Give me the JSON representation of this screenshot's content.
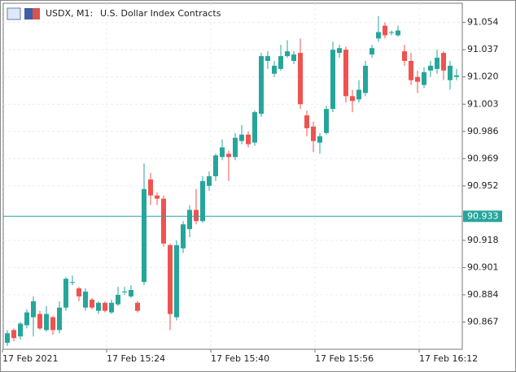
{
  "chart_data": {
    "type": "candlestick",
    "symbol": "USDX, M1:",
    "description": "U.S. Dollar Index Contracts",
    "categories": [
      "17 Feb 2021",
      null,
      null,
      null,
      null,
      null,
      null,
      null,
      null,
      null,
      null,
      null,
      null,
      null,
      null,
      null,
      "17 Feb 15:24",
      null,
      null,
      null,
      null,
      null,
      null,
      null,
      null,
      null,
      null,
      null,
      null,
      null,
      null,
      null,
      "17 Feb 15:40",
      null,
      null,
      null,
      null,
      null,
      null,
      null,
      null,
      null,
      null,
      null,
      null,
      null,
      null,
      null,
      "17 Feb 15:56",
      null,
      null,
      null,
      null,
      null,
      null,
      null,
      null,
      null,
      null,
      null,
      null,
      null,
      null,
      null,
      "17 Feb 16:12",
      null,
      null,
      null,
      null,
      null
    ],
    "open": [
      90.854,
      90.862,
      90.858,
      90.865,
      90.87,
      90.872,
      90.862,
      90.87,
      90.862,
      90.876,
      90.892,
      90.888,
      90.876,
      90.881,
      90.874,
      90.879,
      90.873,
      90.878,
      90.886,
      90.883,
      90.879,
      90.892,
      90.956,
      90.946,
      90.944,
      90.915,
      90.87,
      90.913,
      90.925,
      90.937,
      90.93,
      90.952,
      90.958,
      90.97,
      90.972,
      90.97,
      90.98,
      90.984,
      90.979,
      90.997,
      91.03,
      91.022,
      91.025,
      91.033,
      91.03,
      91.035,
      90.996,
      90.989,
      90.979,
      90.985,
      91.0,
      91.035,
      91.037,
      91.008,
      91.006,
      91.01,
      91.034,
      91.044,
      91.052,
      91.048,
      91.046,
      91.036,
      91.03,
      91.02,
      91.015,
      91.024,
      91.025,
      91.035,
      91.018,
      91.02
    ],
    "high": [
      90.862,
      90.863,
      90.867,
      90.875,
      90.883,
      90.874,
      90.877,
      90.871,
      90.88,
      90.895,
      90.896,
      90.889,
      90.888,
      90.882,
      90.88,
      90.88,
      90.881,
      90.889,
      90.889,
      90.89,
      90.88,
      90.966,
      90.96,
      90.948,
      90.946,
      90.916,
      90.918,
      90.93,
      90.94,
      90.95,
      90.958,
      90.961,
      90.972,
      90.981,
      90.974,
      90.985,
      90.99,
      90.986,
      90.999,
      91.035,
      91.036,
      91.03,
      91.04,
      91.043,
      91.036,
      91.044,
      90.999,
      90.992,
      90.985,
      91.002,
      91.042,
      91.04,
      91.039,
      91.012,
      91.018,
      91.03,
      91.04,
      91.058,
      91.054,
      91.049,
      91.052,
      91.04,
      91.035,
      91.024,
      91.026,
      91.03,
      91.037,
      91.036,
      91.03,
      91.025
    ],
    "low": [
      90.852,
      90.855,
      90.856,
      90.863,
      90.858,
      90.862,
      90.861,
      90.859,
      90.86,
      90.874,
      90.89,
      90.88,
      90.874,
      90.875,
      90.872,
      90.873,
      90.872,
      90.877,
      90.884,
      90.882,
      90.873,
      90.89,
      90.94,
      90.94,
      90.914,
      90.862,
      90.868,
      90.91,
      90.92,
      90.928,
      90.929,
      90.949,
      90.955,
      90.968,
      90.955,
      90.968,
      90.978,
      90.976,
      90.977,
      90.995,
      91.025,
      91.02,
      91.024,
      91.032,
      91.028,
      91.0,
      90.983,
      90.973,
      90.972,
      90.984,
      90.998,
      91.032,
      91.004,
      90.998,
      91.004,
      91.008,
      91.032,
      91.042,
      91.044,
      91.046,
      91.045,
      91.027,
      91.015,
      91.01,
      91.013,
      91.02,
      91.022,
      91.018,
      91.012,
      91.018
    ],
    "close": [
      90.86,
      90.857,
      90.866,
      90.873,
      90.88,
      90.863,
      90.872,
      90.862,
      90.876,
      90.894,
      90.892,
      90.883,
      90.886,
      90.876,
      90.879,
      90.874,
      90.879,
      90.884,
      90.886,
      90.887,
      90.874,
      90.95,
      90.946,
      90.944,
      90.916,
      90.872,
      90.915,
      90.928,
      90.937,
      90.93,
      90.955,
      90.958,
      90.971,
      90.976,
      90.97,
      90.982,
      90.984,
      90.978,
      90.998,
      91.033,
      91.033,
      91.027,
      91.033,
      91.036,
      91.034,
      91.003,
      90.988,
      90.98,
      90.983,
      91.0,
      91.037,
      91.038,
      91.008,
      91.005,
      91.012,
      91.027,
      91.038,
      91.048,
      91.046,
      91.048,
      91.049,
      91.03,
      91.018,
      91.017,
      91.023,
      91.027,
      91.032,
      91.024,
      91.027,
      91.021
    ],
    "up_color": "#26a69a",
    "down_color": "#ef5350",
    "current_price": 90.933,
    "current_price_color": "#26a69a",
    "ylim": [
      90.85,
      91.066
    ],
    "yticks": [
      91.054,
      91.037,
      {
        "value": 91.02,
        "label": "91.020"
      },
      91.003,
      90.986,
      90.969,
      90.952,
      90.918,
      90.901,
      90.884,
      90.867
    ],
    "grid": true
  }
}
